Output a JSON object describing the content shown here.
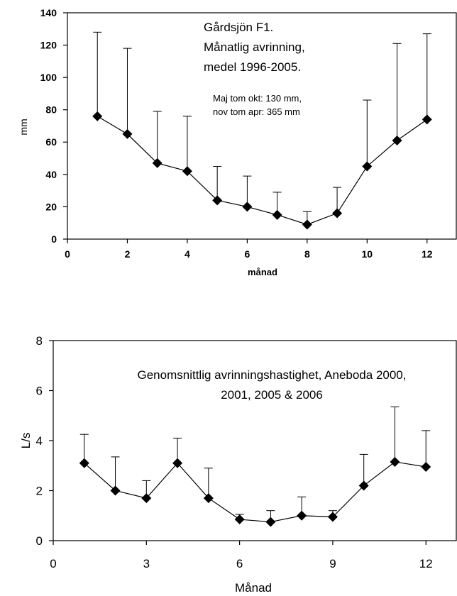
{
  "chart_data": [
    {
      "type": "line",
      "title_lines": [
        "Gårdsjön F1.",
        "Månatlig avrinning,",
        "medel 1996-2005."
      ],
      "note_lines": [
        "Maj tom okt: 130 mm,",
        "nov tom apr: 365 mm"
      ],
      "xlabel": "månad",
      "ylabel": "mm",
      "xlim": [
        0,
        13
      ],
      "ylim": [
        0,
        140
      ],
      "xticks": [
        0,
        2,
        4,
        6,
        8,
        10,
        12
      ],
      "yticks": [
        0,
        20,
        40,
        60,
        80,
        100,
        120,
        140
      ],
      "grid": false,
      "x": [
        1,
        2,
        3,
        4,
        5,
        6,
        7,
        8,
        9,
        10,
        11,
        12
      ],
      "series": [
        {
          "values": [
            76,
            65,
            47,
            42,
            24,
            20,
            15,
            9,
            16,
            45,
            61,
            74
          ],
          "error_upper": [
            128,
            118,
            79,
            76,
            45,
            39,
            29,
            17,
            32,
            86,
            121,
            127
          ],
          "marker": "diamond",
          "color": "#000000"
        }
      ]
    },
    {
      "type": "line",
      "title_lines": [
        "Genomsnittlig avrinningshastighet, Aneboda 2000,",
        "2001, 2005 & 2006"
      ],
      "xlabel": "Månad",
      "ylabel": "L/s",
      "xlim": [
        0,
        13
      ],
      "ylim": [
        0,
        8
      ],
      "xticks": [
        0,
        3,
        6,
        9,
        12
      ],
      "yticks": [
        0,
        2,
        4,
        6,
        8
      ],
      "grid": false,
      "x": [
        1,
        2,
        3,
        4,
        5,
        6,
        7,
        8,
        9,
        10,
        11,
        12
      ],
      "series": [
        {
          "values": [
            3.1,
            2.0,
            1.7,
            3.1,
            1.7,
            0.85,
            0.75,
            1.0,
            0.95,
            2.2,
            3.15,
            2.95
          ],
          "error_upper": [
            4.25,
            3.35,
            2.4,
            4.1,
            2.9,
            1.05,
            1.2,
            1.75,
            1.2,
            3.45,
            5.35,
            4.4
          ],
          "marker": "diamond",
          "color": "#000000"
        }
      ]
    }
  ]
}
